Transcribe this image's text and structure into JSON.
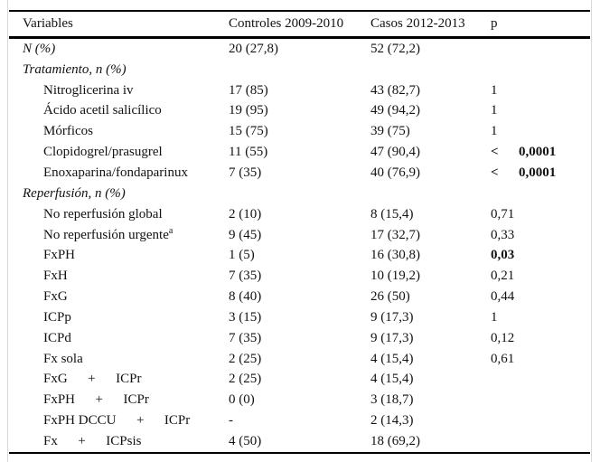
{
  "colors": {
    "rule": "#000000",
    "page_edge": "#d9d9d9",
    "text": "#121212"
  },
  "table": {
    "headers": [
      "Variables",
      "Controles 2009-2010",
      "Casos 2012-2013",
      "p"
    ],
    "rows": [
      {
        "label": "N (%)",
        "type": "section",
        "controles": "20 (27,8)",
        "casos": "52 (72,2)",
        "p": "",
        "p_bold": false
      },
      {
        "label": "Tratamiento, n (%)",
        "type": "section",
        "controles": "",
        "casos": "",
        "p": "",
        "p_bold": false
      },
      {
        "label": "Nitroglicerina iv",
        "type": "item",
        "controles": "17 (85)",
        "casos": "43 (82,7)",
        "p": "1",
        "p_bold": false
      },
      {
        "label": "Ácido acetil salicílico",
        "type": "item",
        "controles": "19 (95)",
        "casos": "49 (94,2)",
        "p": "1",
        "p_bold": false
      },
      {
        "label": "Mórficos",
        "type": "item",
        "controles": "15 (75)",
        "casos": "39 (75)",
        "p": "1",
        "p_bold": false
      },
      {
        "label": "Clopidogrel/prasugrel",
        "type": "item",
        "controles": "11 (55)",
        "casos": "47 (90,4)",
        "p": "<  0,0001",
        "p_bold": true
      },
      {
        "label": "Enoxaparina/fondaparinux",
        "type": "item",
        "controles": "7 (35)",
        "casos": "40 (76,9)",
        "p": "<  0,0001",
        "p_bold": true
      },
      {
        "label": "Reperfusión, n (%)",
        "type": "section",
        "controles": "",
        "casos": "",
        "p": "",
        "p_bold": false
      },
      {
        "label": "No reperfusión global",
        "type": "item",
        "controles": "2 (10)",
        "casos": "8 (15,4)",
        "p": "0,71",
        "p_bold": false
      },
      {
        "label": "No reperfusión urgente",
        "label_sup": "a",
        "type": "item",
        "controles": "9 (45)",
        "casos": "17 (32,7)",
        "p": "0,33",
        "p_bold": false
      },
      {
        "label": "FxPH",
        "type": "item",
        "controles": "1 (5)",
        "casos": "16 (30,8)",
        "p": "0,03",
        "p_bold": true
      },
      {
        "label": "FxH",
        "type": "item",
        "controles": "7 (35)",
        "casos": "10 (19,2)",
        "p": "0,21",
        "p_bold": false
      },
      {
        "label": "FxG",
        "type": "item",
        "controles": "8 (40)",
        "casos": "26 (50)",
        "p": "0,44",
        "p_bold": false
      },
      {
        "label": "ICPp",
        "type": "item",
        "controles": "3 (15)",
        "casos": "9 (17,3)",
        "p": "1",
        "p_bold": false
      },
      {
        "label": "ICPd",
        "type": "item",
        "controles": "7 (35)",
        "casos": "9 (17,3)",
        "p": "0,12",
        "p_bold": false
      },
      {
        "label": "Fx sola",
        "type": "item",
        "controles": "2 (25)",
        "casos": "4 (15,4)",
        "p": "0,61",
        "p_bold": false
      },
      {
        "label": "FxG  +  ICPr",
        "type": "item",
        "controles": "2 (25)",
        "casos": "4 (15,4)",
        "p": "",
        "p_bold": false
      },
      {
        "label": "FxPH  +  ICPr",
        "type": "item",
        "controles": "0 (0)",
        "casos": "3 (18,7)",
        "p": "",
        "p_bold": false
      },
      {
        "label": "FxPH DCCU  +  ICPr",
        "type": "item",
        "controles": "-",
        "casos": "2 (14,3)",
        "p": "",
        "p_bold": false
      },
      {
        "label": "Fx  +  ICPsis",
        "type": "item",
        "controles": "4 (50)",
        "casos": "18 (69,2)",
        "p": "",
        "p_bold": false
      }
    ]
  }
}
